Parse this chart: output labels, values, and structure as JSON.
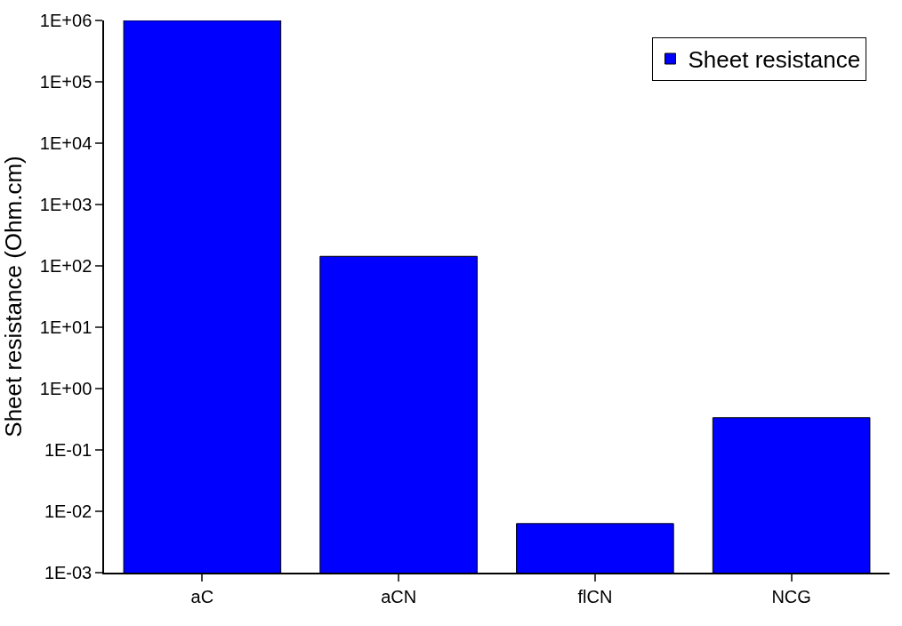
{
  "chart_data": {
    "type": "bar",
    "ylabel": "Sheet resistance (Ohm.cm)",
    "categories": [
      "aC",
      "aCN",
      "flCN",
      "NCG"
    ],
    "series": [
      {
        "name": "Sheet resistance",
        "color": "#0000ff",
        "values": [
          1000000,
          143,
          0.0063,
          0.335
        ]
      }
    ],
    "log": "y",
    "ylim": [
      0.001,
      1000000
    ],
    "yticks": [
      {
        "value": 0.001,
        "label": "1E-03"
      },
      {
        "value": 0.01,
        "label": "1E-02"
      },
      {
        "value": 0.1,
        "label": "1E-01"
      },
      {
        "value": 1,
        "label": "1E+00"
      },
      {
        "value": 10,
        "label": "1E+01"
      },
      {
        "value": 100,
        "label": "1E+02"
      },
      {
        "value": 1000,
        "label": "1E+03"
      },
      {
        "value": 10000,
        "label": "1E+04"
      },
      {
        "value": 100000,
        "label": "1E+05"
      },
      {
        "value": 1000000,
        "label": "1E+06"
      }
    ],
    "legend": "top right"
  }
}
